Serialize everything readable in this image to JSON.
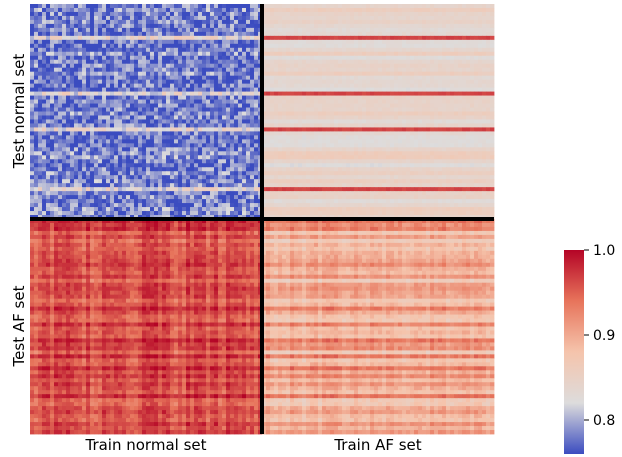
{
  "chart_data": {
    "type": "heatmap",
    "row_groups": [
      "Test normal set",
      "Test AF set"
    ],
    "col_groups": [
      "Train normal set",
      "Train AF set"
    ],
    "colorbar": {
      "ticks": [
        1.0,
        0.9,
        0.8
      ],
      "tick_labels": [
        "1.0",
        "0.9",
        "0.8"
      ],
      "range": [
        0.76,
        1.0
      ]
    },
    "block_mean_values": [
      [
        0.78,
        0.84
      ],
      [
        0.96,
        0.9
      ]
    ],
    "colormap": [
      "#3b4cc0",
      "#dddcdc",
      "#f5c4ac",
      "#e7745b",
      "#b40426"
    ],
    "separator_color": "#000000"
  }
}
